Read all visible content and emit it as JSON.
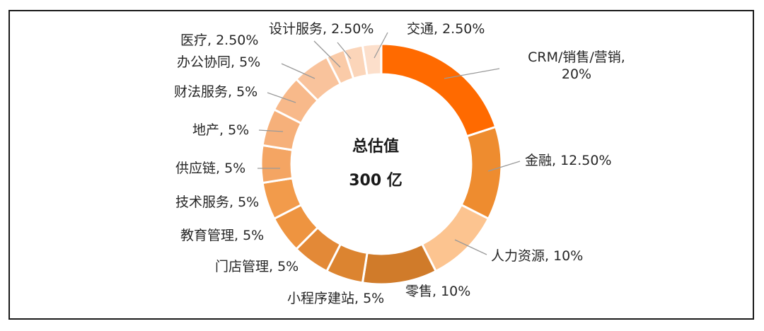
{
  "chart_data": {
    "type": "pie",
    "variant": "donut",
    "center_title": "总估值",
    "center_value": "300 亿",
    "slices": [
      {
        "name": "CRM/销售/营销",
        "value": 20,
        "label": "CRM/销售/营销,\n20%",
        "color": "#FF6A00"
      },
      {
        "name": "金融",
        "value": 12.5,
        "label": "金融, 12.50%",
        "color": "#EE8C2F"
      },
      {
        "name": "人力资源",
        "value": 10,
        "label": "人力资源, 10%",
        "color": "#FCC490"
      },
      {
        "name": "零售",
        "value": 10,
        "label": "零售, 10%",
        "color": "#D07B2A"
      },
      {
        "name": "小程序建站",
        "value": 5,
        "label": "小程序建站, 5%",
        "color": "#DC8430"
      },
      {
        "name": "门店管理",
        "value": 5,
        "label": "门店管理, 5%",
        "color": "#E38937"
      },
      {
        "name": "教育管理",
        "value": 5,
        "label": "教育管理, 5%",
        "color": "#EE9440"
      },
      {
        "name": "技术服务",
        "value": 5,
        "label": "技术服务, 5%",
        "color": "#F29B4B"
      },
      {
        "name": "供应链",
        "value": 5,
        "label": "供应链, 5%",
        "color": "#F4A563"
      },
      {
        "name": "地产",
        "value": 5,
        "label": "地产, 5%",
        "color": "#F6B07A"
      },
      {
        "name": "财法服务",
        "value": 5,
        "label": "财法服务, 5%",
        "color": "#F8B98A"
      },
      {
        "name": "办公协同",
        "value": 5,
        "label": "办公协同, 5%",
        "color": "#F9C39C"
      },
      {
        "name": "医疗",
        "value": 2.5,
        "label": "医疗, 2.50%",
        "color": "#FACBA8"
      },
      {
        "name": "设计服务",
        "value": 2.5,
        "label": "设计服务, 2.50%",
        "color": "#FBD5B9"
      },
      {
        "name": "交通",
        "value": 2.5,
        "label": "交通, 2.50%",
        "color": "#FCDFCB"
      }
    ]
  }
}
